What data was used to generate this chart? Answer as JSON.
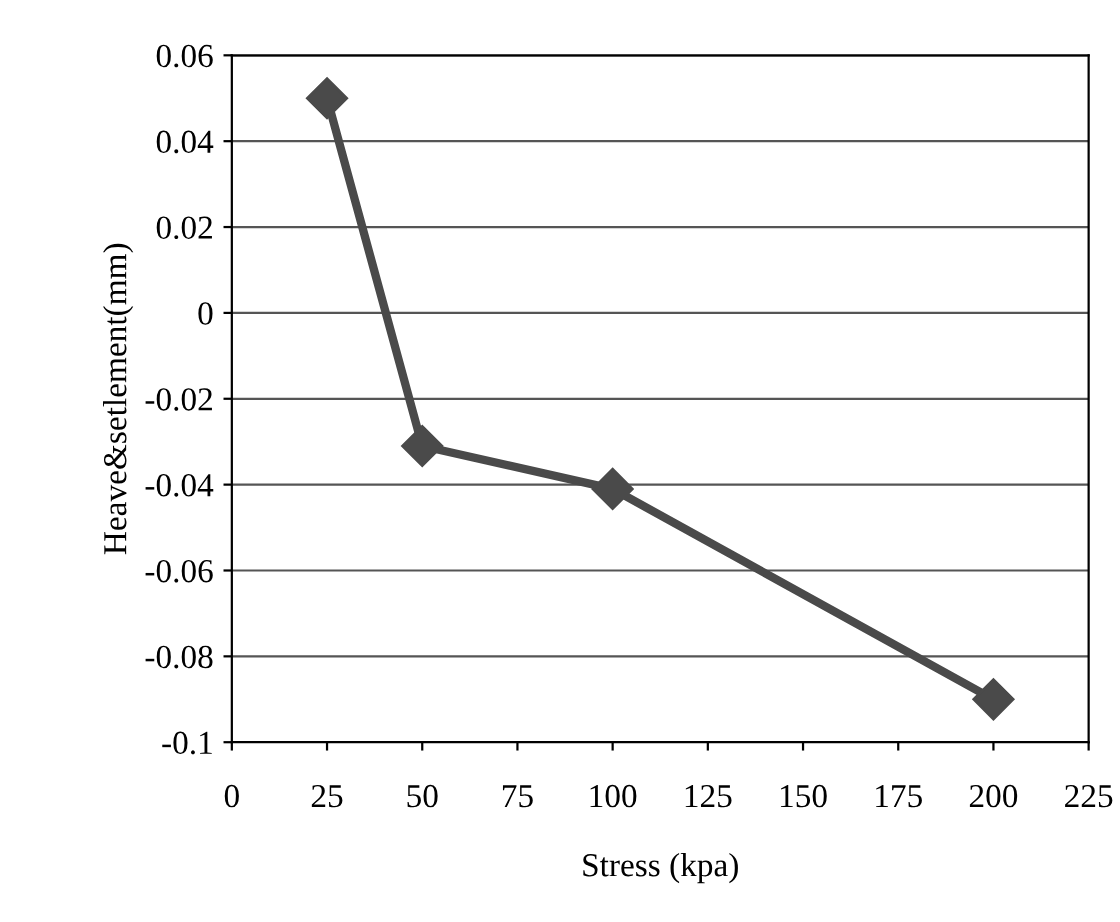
{
  "chart_data": {
    "type": "line",
    "xlabel": "Stress (kpa)",
    "ylabel": "Heave&setlement(mm)",
    "x": [
      25,
      50,
      100,
      200
    ],
    "series": [
      {
        "color": "#4a4a4a",
        "values": [
          0.05,
          -0.031,
          -0.041,
          -0.09
        ]
      }
    ],
    "xlim": [
      0,
      225
    ],
    "xticks": [
      0,
      25,
      50,
      75,
      100,
      125,
      150,
      175,
      200,
      225
    ],
    "ylim": [
      -0.1,
      0.06
    ],
    "yticks": [
      -0.1,
      -0.08,
      -0.06,
      -0.04,
      -0.02,
      0,
      0.02,
      0.04,
      0.06
    ],
    "grid": "y",
    "marker": "diamond",
    "line_style": "solid",
    "legend": false
  }
}
